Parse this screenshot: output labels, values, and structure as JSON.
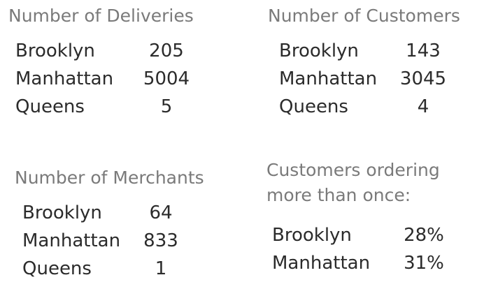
{
  "deliveries": {
    "title": "Number of Deliveries",
    "rows": [
      {
        "label": "Brooklyn",
        "value": "205"
      },
      {
        "label": "Manhattan",
        "value": "5004"
      },
      {
        "label": "Queens",
        "value": "5"
      }
    ]
  },
  "customers": {
    "title": "Number of Customers",
    "rows": [
      {
        "label": "Brooklyn",
        "value": "143"
      },
      {
        "label": "Manhattan",
        "value": "3045"
      },
      {
        "label": "Queens",
        "value": "4"
      }
    ]
  },
  "merchants": {
    "title": "Number of Merchants",
    "rows": [
      {
        "label": "Brooklyn",
        "value": "64"
      },
      {
        "label": "Manhattan",
        "value": "833"
      },
      {
        "label": "Queens",
        "value": "1"
      }
    ]
  },
  "repeat_customers": {
    "title_line1": "Customers ordering",
    "title_line2": "more than once:",
    "rows": [
      {
        "label": "Brooklyn",
        "value": "28%"
      },
      {
        "label": "Manhattan",
        "value": "31%"
      }
    ]
  },
  "colors": {
    "heading": "#7a7a7a",
    "text": "#2b2b2b",
    "background": "#ffffff"
  }
}
